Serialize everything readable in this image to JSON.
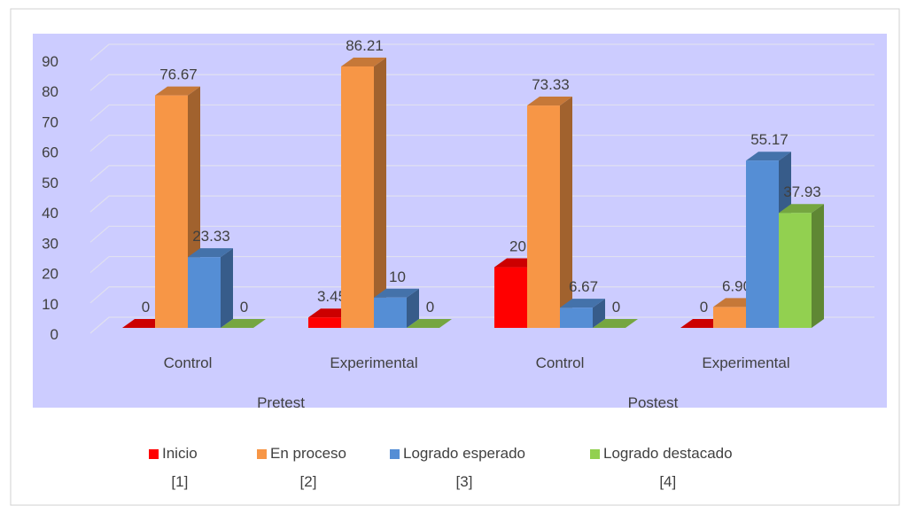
{
  "chart_data": {
    "type": "bar3d",
    "categories": [
      "Control",
      "Experimental",
      "Control",
      "Experimental"
    ],
    "groups": [
      {
        "label": "Pretest",
        "span": [
          0,
          1
        ]
      },
      {
        "label": "Postest",
        "span": [
          2,
          3
        ]
      }
    ],
    "series": [
      {
        "name": "Inicio\n[1]",
        "color": "#ff0000",
        "values": [
          0,
          3.45,
          20,
          0
        ]
      },
      {
        "name": "En proceso\n[2]",
        "color": "#f79646",
        "values": [
          76.67,
          86.21,
          73.33,
          6.9
        ],
        "value_labels": [
          "76.67",
          "86.21",
          "73.33",
          "6.90"
        ]
      },
      {
        "name": "Logrado esperado\n[3]",
        "color": "#558ed5",
        "values": [
          23.33,
          10,
          6.67,
          55.17
        ]
      },
      {
        "name": "Logrado destacado\n[4]",
        "color": "#92d050",
        "values": [
          0,
          0,
          0,
          37.93
        ]
      }
    ],
    "ylim": [
      0,
      90
    ],
    "yticks": [
      0,
      10,
      20,
      30,
      40,
      50,
      60,
      70,
      80,
      90
    ],
    "grid": true,
    "legend": "bottom"
  }
}
